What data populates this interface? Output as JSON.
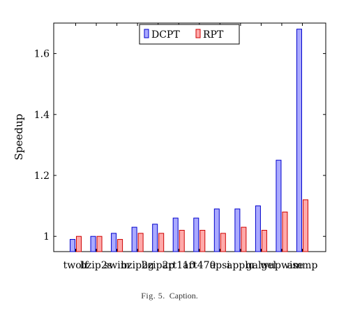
{
  "chart_data": {
    "type": "bar",
    "title": "",
    "xlabel": "",
    "ylabel": "Speedup",
    "ylim": [
      0.95,
      1.7
    ],
    "yticks": [
      1,
      1.2,
      1.4,
      1.6
    ],
    "ytick_labels": [
      "1",
      "1.2",
      "1.4",
      "1.6"
    ],
    "grid": false,
    "legend_position": "top-center",
    "categories": [
      "twolf",
      "bzip2s",
      "swim",
      "bzip2g",
      "bzip2p",
      "art110",
      "art470",
      "apsi",
      "applu",
      "galgel",
      "wupwise",
      "ammp"
    ],
    "series": [
      {
        "name": "DCPT",
        "values": [
          0.99,
          1.0,
          1.01,
          1.03,
          1.04,
          1.06,
          1.06,
          1.09,
          1.09,
          1.1,
          1.25,
          1.68
        ],
        "fill": "#aaaaff",
        "stroke": "#0000cc"
      },
      {
        "name": "RPT",
        "values": [
          1.0,
          1.0,
          0.99,
          1.01,
          1.01,
          1.02,
          1.02,
          1.01,
          1.03,
          1.02,
          1.08,
          1.12
        ],
        "fill": "#ffaaaa",
        "stroke": "#cc0000"
      }
    ]
  },
  "caption": {
    "label": "Fig. 5.",
    "text": "Caption."
  }
}
